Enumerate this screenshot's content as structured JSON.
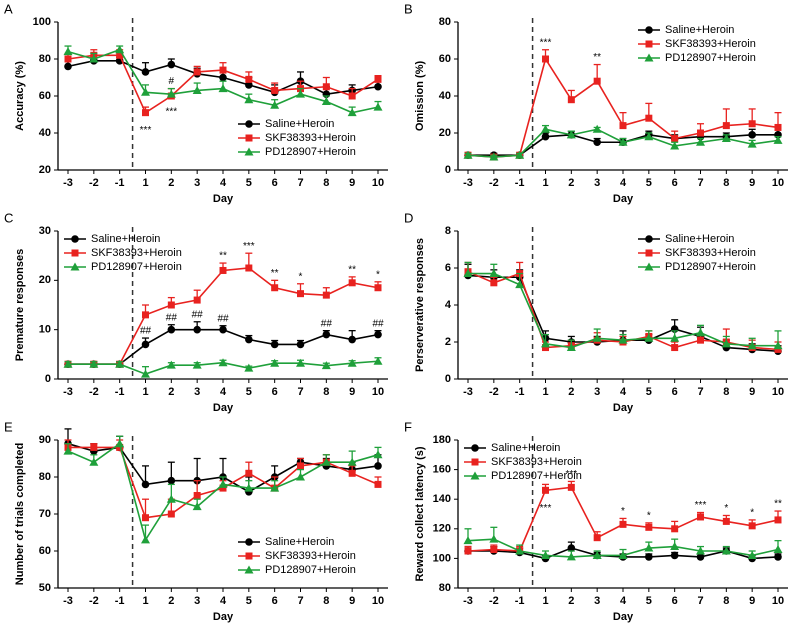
{
  "chart_data": [
    {
      "type": "line",
      "panel": "A",
      "ylabel": "Accuracy (%)",
      "xlabel": "Day",
      "categories": [
        "-3",
        "-2",
        "-1",
        "1",
        "2",
        "3",
        "4",
        "5",
        "6",
        "7",
        "8",
        "9",
        "10"
      ],
      "ylim": [
        20,
        100
      ],
      "yticks": [
        20,
        40,
        60,
        80,
        100
      ],
      "legend": "lower right",
      "series": [
        {
          "name": "Saline+Heroin",
          "color": "#000000",
          "marker": "circle",
          "values": [
            76,
            79,
            79,
            73,
            77,
            72,
            70,
            66,
            62,
            68,
            61,
            63,
            65
          ],
          "errors": [
            3,
            2,
            2,
            5,
            3,
            3,
            4,
            4,
            4,
            5,
            4,
            3,
            4
          ]
        },
        {
          "name": "SKF38393+Heroin",
          "color": "#e8221f",
          "marker": "square",
          "values": [
            80,
            82,
            82,
            51,
            60,
            73,
            74,
            69,
            63,
            64,
            65,
            60,
            69
          ],
          "errors": [
            3,
            3,
            3,
            3,
            4,
            3,
            4,
            4,
            4,
            4,
            5,
            4,
            2
          ]
        },
        {
          "name": "PD128907+Heroin",
          "color": "#1fa03a",
          "marker": "triangle",
          "values": [
            84,
            80,
            85,
            62,
            61,
            63,
            64,
            58,
            55,
            61,
            57,
            51,
            54
          ],
          "errors": [
            3,
            3,
            2,
            4,
            3,
            4,
            4,
            3,
            3,
            3,
            3,
            3,
            3
          ]
        }
      ],
      "annotations": [
        {
          "text": "***",
          "at": "1",
          "near": "SKF38393+Heroin",
          "side": "below"
        },
        {
          "text": "#",
          "at": "2",
          "near": "SKF38393+Heroin",
          "side": "above"
        },
        {
          "text": "***",
          "at": "2",
          "near": "PD128907+Heroin",
          "side": "below"
        }
      ]
    },
    {
      "type": "line",
      "panel": "B",
      "ylabel": "Omission (%)",
      "xlabel": "Day",
      "categories": [
        "-3",
        "-2",
        "-1",
        "1",
        "2",
        "3",
        "4",
        "5",
        "6",
        "7",
        "8",
        "9",
        "10"
      ],
      "ylim": [
        0,
        80
      ],
      "yticks": [
        0,
        20,
        40,
        60,
        80
      ],
      "legend": "upper right",
      "series": [
        {
          "name": "Saline+Heroin",
          "color": "#000000",
          "marker": "circle",
          "values": [
            8,
            8,
            8,
            18,
            19,
            15,
            15,
            19,
            17,
            18,
            18,
            19,
            19
          ],
          "errors": [
            1,
            1,
            1,
            2,
            2,
            2,
            2,
            2,
            2,
            2,
            2,
            3,
            3
          ]
        },
        {
          "name": "SKF38393+Heroin",
          "color": "#e8221f",
          "marker": "square",
          "values": [
            8,
            7,
            8,
            60,
            38,
            48,
            24,
            28,
            17,
            20,
            24,
            25,
            23
          ],
          "errors": [
            1,
            1,
            1,
            5,
            5,
            9,
            7,
            8,
            4,
            5,
            9,
            8,
            8
          ]
        },
        {
          "name": "PD128907+Heroin",
          "color": "#1fa03a",
          "marker": "triangle",
          "values": [
            8,
            7,
            8,
            22,
            19,
            22,
            15,
            18,
            13,
            15,
            17,
            14,
            16
          ],
          "errors": [
            1,
            1,
            1,
            2,
            2,
            1,
            2,
            2,
            2,
            2,
            2,
            2,
            2
          ]
        }
      ],
      "annotations": [
        {
          "text": "***",
          "at": "1",
          "near": "SKF38393+Heroin",
          "side": "above"
        },
        {
          "text": "**",
          "at": "3",
          "near": "SKF38393+Heroin",
          "side": "above"
        }
      ]
    },
    {
      "type": "line",
      "panel": "C",
      "ylabel": "Premature responses",
      "xlabel": "Day",
      "categories": [
        "-3",
        "-2",
        "-1",
        "1",
        "2",
        "3",
        "4",
        "5",
        "6",
        "7",
        "8",
        "9",
        "10"
      ],
      "ylim": [
        0,
        30
      ],
      "yticks": [
        0,
        10,
        20,
        30
      ],
      "legend": "upper left",
      "series": [
        {
          "name": "Saline+Heroin",
          "color": "#000000",
          "marker": "circle",
          "values": [
            3,
            3,
            3,
            7,
            10,
            10,
            10,
            8,
            7,
            7,
            9,
            8,
            9
          ],
          "errors": [
            0.5,
            0.5,
            0.5,
            1.3,
            1,
            1.6,
            0.8,
            0.8,
            0.8,
            0.8,
            0.8,
            1.8,
            0.8
          ]
        },
        {
          "name": "SKF38393+Heroin",
          "color": "#e8221f",
          "marker": "square",
          "values": [
            3,
            3,
            3,
            13,
            15,
            16,
            22,
            22.5,
            18.5,
            17.3,
            17,
            19.5,
            18.5
          ],
          "errors": [
            0.5,
            0.5,
            0.5,
            2,
            1.5,
            2,
            1.5,
            3,
            1.5,
            2,
            1.5,
            1.2,
            1.2
          ]
        },
        {
          "name": "PD128907+Heroin",
          "color": "#1fa03a",
          "marker": "triangle",
          "values": [
            3,
            3,
            3,
            1,
            2.8,
            2.8,
            3.3,
            2.2,
            3.2,
            3.2,
            2.7,
            3.2,
            3.6
          ],
          "errors": [
            0.5,
            0.5,
            0.5,
            1.5,
            0.5,
            0.5,
            0.5,
            0.4,
            0.5,
            0.6,
            0.5,
            0.5,
            0.7
          ]
        }
      ],
      "annotations": [
        {
          "text": "##",
          "at": "1",
          "near": "Saline+Heroin",
          "side": "above"
        },
        {
          "text": "##",
          "at": "2",
          "near": "Saline+Heroin",
          "side": "above"
        },
        {
          "text": "##",
          "at": "3",
          "near": "Saline+Heroin",
          "side": "above"
        },
        {
          "text": "##",
          "at": "4",
          "near": "Saline+Heroin",
          "side": "above"
        },
        {
          "text": "##",
          "at": "8",
          "near": "Saline+Heroin",
          "side": "above"
        },
        {
          "text": "##",
          "at": "10",
          "near": "Saline+Heroin",
          "side": "above"
        },
        {
          "text": "**",
          "at": "4",
          "near": "SKF38393+Heroin",
          "side": "above"
        },
        {
          "text": "***",
          "at": "5",
          "near": "SKF38393+Heroin",
          "side": "above"
        },
        {
          "text": "**",
          "at": "6",
          "near": "SKF38393+Heroin",
          "side": "above"
        },
        {
          "text": "*",
          "at": "7",
          "near": "SKF38393+Heroin",
          "side": "above"
        },
        {
          "text": "**",
          "at": "9",
          "near": "SKF38393+Heroin",
          "side": "above"
        },
        {
          "text": "*",
          "at": "10",
          "near": "SKF38393+Heroin",
          "side": "above"
        }
      ]
    },
    {
      "type": "line",
      "panel": "D",
      "ylabel": "Perserverative responses",
      "xlabel": "Day",
      "categories": [
        "-3",
        "-2",
        "-1",
        "1",
        "2",
        "3",
        "4",
        "5",
        "6",
        "7",
        "8",
        "9",
        "10"
      ],
      "ylim": [
        0,
        8
      ],
      "yticks": [
        0,
        2,
        4,
        6,
        8
      ],
      "legend": "upper right",
      "series": [
        {
          "name": "Saline+Heroin",
          "color": "#000000",
          "marker": "circle",
          "values": [
            5.6,
            5.5,
            5.5,
            2.2,
            2.0,
            2.0,
            2.1,
            2.1,
            2.7,
            2.3,
            1.7,
            1.6,
            1.5
          ],
          "errors": [
            0.6,
            0.4,
            0.4,
            0.4,
            0.3,
            0.3,
            0.5,
            0.3,
            0.5,
            0.5,
            0.4,
            0.3,
            0.3
          ]
        },
        {
          "name": "SKF38393+Heroin",
          "color": "#e8221f",
          "marker": "square",
          "values": [
            5.8,
            5.2,
            5.7,
            1.7,
            1.8,
            2.1,
            2.0,
            2.3,
            1.7,
            2.1,
            2.0,
            1.7,
            1.6
          ],
          "errors": [
            0.5,
            0.3,
            0.6,
            0.3,
            0.3,
            0.4,
            0.3,
            0.3,
            0.3,
            0.3,
            0.7,
            0.4,
            0.4
          ]
        },
        {
          "name": "PD128907+Heroin",
          "color": "#1fa03a",
          "marker": "triangle",
          "values": [
            5.7,
            5.7,
            5.1,
            1.9,
            1.7,
            2.2,
            2.1,
            2.2,
            2.2,
            2.5,
            1.9,
            1.8,
            1.8
          ],
          "errors": [
            0.6,
            0.5,
            0.6,
            0.5,
            0.4,
            0.5,
            0.3,
            0.4,
            0.4,
            0.4,
            0.4,
            0.4,
            0.8
          ]
        }
      ],
      "annotations": []
    },
    {
      "type": "line",
      "panel": "E",
      "ylabel": "Number of trials completed",
      "xlabel": "Day",
      "categories": [
        "-3",
        "-2",
        "-1",
        "1",
        "2",
        "3",
        "4",
        "5",
        "6",
        "7",
        "8",
        "9",
        "10"
      ],
      "ylim": [
        50,
        90
      ],
      "yticks": [
        50,
        60,
        70,
        80,
        90
      ],
      "legend": "lower right",
      "series": [
        {
          "name": "Saline+Heroin",
          "color": "#000000",
          "marker": "circle",
          "values": [
            89,
            87,
            88,
            78,
            79,
            79,
            80,
            76,
            80,
            84,
            83,
            82,
            83
          ],
          "errors": [
            4,
            2,
            3,
            5,
            5,
            6,
            5,
            4,
            3,
            1,
            2,
            2,
            3
          ]
        },
        {
          "name": "SKF38393+Heroin",
          "color": "#e8221f",
          "marker": "square",
          "values": [
            88,
            88,
            88,
            69,
            70,
            75,
            77,
            81,
            77,
            83,
            84,
            81,
            78
          ],
          "errors": [
            2,
            1,
            2,
            5,
            4,
            4,
            2,
            3,
            3,
            2,
            2,
            2,
            2
          ]
        },
        {
          "name": "PD128907+Heroin",
          "color": "#1fa03a",
          "marker": "triangle",
          "values": [
            87,
            84,
            89,
            63,
            74,
            72,
            78,
            77,
            77,
            80,
            84,
            84,
            86
          ],
          "errors": [
            2,
            2,
            2,
            4,
            4,
            2,
            2,
            2,
            2,
            2,
            2,
            3,
            2
          ]
        }
      ],
      "annotations": []
    },
    {
      "type": "line",
      "panel": "F",
      "ylabel": "Reward collect latency (s)",
      "xlabel": "Day",
      "categories": [
        "-3",
        "-2",
        "-1",
        "1",
        "2",
        "3",
        "4",
        "5",
        "6",
        "7",
        "8",
        "9",
        "10"
      ],
      "ylim": [
        80,
        180
      ],
      "yticks": [
        80,
        100,
        120,
        140,
        160,
        180
      ],
      "legend": "upper left",
      "series": [
        {
          "name": "Saline+Heroin",
          "color": "#000000",
          "marker": "circle",
          "values": [
            105,
            105,
            104,
            100,
            107,
            102,
            101,
            101,
            102,
            101,
            105,
            100,
            101
          ],
          "errors": [
            3,
            3,
            3,
            2,
            4,
            2,
            2,
            2,
            2,
            2,
            2,
            2,
            2
          ]
        },
        {
          "name": "SKF38393+Heroin",
          "color": "#e8221f",
          "marker": "square",
          "values": [
            105,
            106,
            105,
            146,
            148,
            114,
            123,
            121,
            120,
            128,
            125,
            122,
            126
          ],
          "errors": [
            3,
            3,
            3,
            4,
            4,
            4,
            4,
            3,
            5,
            3,
            4,
            4,
            6
          ]
        },
        {
          "name": "PD128907+Heroin",
          "color": "#1fa03a",
          "marker": "triangle",
          "values": [
            112,
            113,
            105,
            102,
            101,
            102,
            102,
            107,
            108,
            105,
            105,
            102,
            106
          ],
          "errors": [
            8,
            8,
            4,
            3,
            4,
            3,
            4,
            4,
            5,
            3,
            3,
            3,
            6
          ]
        }
      ],
      "annotations": [
        {
          "text": "***",
          "at": "1",
          "near": "SKF38393+Heroin",
          "side": "below"
        },
        {
          "text": "***",
          "at": "2",
          "near": "SKF38393+Heroin",
          "side": "above"
        },
        {
          "text": "*",
          "at": "4",
          "near": "SKF38393+Heroin",
          "side": "above"
        },
        {
          "text": "*",
          "at": "5",
          "near": "SKF38393+Heroin",
          "side": "above"
        },
        {
          "text": "***",
          "at": "7",
          "near": "SKF38393+Heroin",
          "side": "above"
        },
        {
          "text": "*",
          "at": "8",
          "near": "SKF38393+Heroin",
          "side": "above"
        },
        {
          "text": "*",
          "at": "9",
          "near": "SKF38393+Heroin",
          "side": "above"
        },
        {
          "text": "**",
          "at": "10",
          "near": "SKF38393+Heroin",
          "side": "above"
        }
      ]
    }
  ]
}
